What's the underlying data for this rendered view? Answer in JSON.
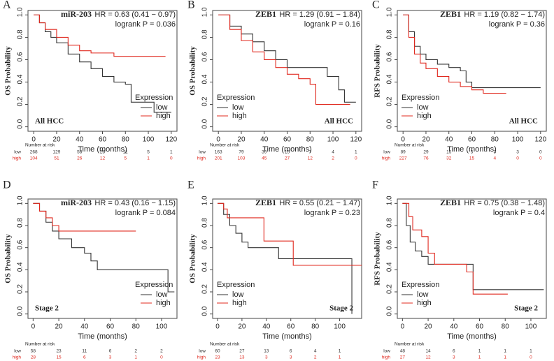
{
  "chart_data": [
    {
      "type": "step",
      "panel": "A",
      "gene": "miR-203",
      "hr": "HR = 0.63 (0.41 − 0.97)",
      "p": "logrank P = 0.036",
      "annotation": "All HCC",
      "y_label": "OS Probability",
      "x_label": "Time (months)",
      "legend_title": "Expression",
      "legend": "lower right",
      "xlim": [
        -5,
        125
      ],
      "xticks": [
        0,
        20,
        40,
        60,
        80,
        100,
        120
      ],
      "ylim": [
        -0.04,
        1.04
      ],
      "yticks": [
        {
          "value": 0,
          "label": "0.0"
        },
        {
          "value": 0.2,
          "label": "0.2"
        },
        {
          "value": 0.4,
          "label": "0.4"
        },
        {
          "value": 0.6,
          "label": "0.6"
        },
        {
          "value": 0.8,
          "label": "0.8"
        },
        {
          "value": 1,
          "label": "1.0"
        }
      ],
      "series": [
        {
          "name": "low",
          "color": "#333333",
          "x": [
            0,
            5,
            10,
            15,
            20,
            30,
            40,
            50,
            60,
            70,
            80,
            85,
            105,
            120
          ],
          "values": [
            1,
            0.93,
            0.85,
            0.8,
            0.75,
            0.65,
            0.58,
            0.52,
            0.45,
            0.4,
            0.38,
            0.22,
            0.13,
            0.13
          ]
        },
        {
          "name": "high",
          "color": "#e0281e",
          "x": [
            0,
            5,
            10,
            20,
            30,
            40,
            50,
            70,
            115
          ],
          "values": [
            1,
            0.93,
            0.87,
            0.8,
            0.73,
            0.68,
            0.66,
            0.63,
            0.63
          ]
        }
      ],
      "risk_table": {
        "title": "Number at risk",
        "rows": [
          {
            "name": "low",
            "values": [
              268,
              129,
              58,
              28,
              11,
              5,
              1
            ]
          },
          {
            "name": "high",
            "values": [
              104,
              51,
              26,
              12,
              5,
              1,
              0
            ]
          }
        ]
      }
    },
    {
      "type": "step",
      "panel": "B",
      "gene": "ZEB1",
      "hr": "HR = 1.29 (0.91 − 1.84)",
      "p": "logrank P = 0.16",
      "annotation": "All HCC",
      "y_label": "OS Probability",
      "x_label": "Time (months)",
      "legend_title": "Expression",
      "legend": "lower left",
      "xlim": [
        -5,
        125
      ],
      "xticks": [
        0,
        20,
        40,
        60,
        80,
        100,
        120
      ],
      "ylim": [
        -0.04,
        1.04
      ],
      "yticks": [
        {
          "value": 0,
          "label": "0.0"
        },
        {
          "value": 0.2,
          "label": "0.2"
        },
        {
          "value": 0.4,
          "label": "0.4"
        },
        {
          "value": 0.6,
          "label": "0.6"
        },
        {
          "value": 0.8,
          "label": "0.8"
        },
        {
          "value": 1,
          "label": "1.0"
        }
      ],
      "series": [
        {
          "name": "low",
          "color": "#333333",
          "x": [
            0,
            10,
            20,
            30,
            40,
            50,
            60,
            95,
            105,
            110,
            120
          ],
          "values": [
            1,
            0.9,
            0.83,
            0.76,
            0.68,
            0.6,
            0.53,
            0.45,
            0.33,
            0.22,
            0.22
          ]
        },
        {
          "name": "high",
          "color": "#e0281e",
          "x": [
            0,
            10,
            20,
            30,
            40,
            50,
            60,
            70,
            80,
            85,
            115
          ],
          "values": [
            1,
            0.87,
            0.77,
            0.67,
            0.6,
            0.53,
            0.47,
            0.43,
            0.38,
            0.2,
            0.2
          ]
        }
      ],
      "risk_table": {
        "title": "Number at risk",
        "rows": [
          {
            "name": "low",
            "values": [
              163,
              79,
              39,
              15,
              7,
              4,
              1
            ]
          },
          {
            "name": "high",
            "values": [
              201,
              103,
              45,
              27,
              12,
              2,
              0
            ]
          }
        ]
      }
    },
    {
      "type": "step",
      "panel": "C",
      "gene": "ZEB1",
      "hr": "HR = 1.19 (0.82 − 1.74)",
      "p": "logrank P = 0.36",
      "annotation": "All HCC",
      "y_label": "RFS Probability",
      "x_label": "Time (months)",
      "legend_title": "Expression",
      "legend": "lower left",
      "xlim": [
        -5,
        125
      ],
      "xticks": [
        0,
        20,
        40,
        60,
        80,
        100,
        120
      ],
      "ylim": [
        -0.04,
        1.04
      ],
      "yticks": [
        {
          "value": 0,
          "label": "0.0"
        },
        {
          "value": 0.2,
          "label": "0.2"
        },
        {
          "value": 0.4,
          "label": "0.4"
        },
        {
          "value": 0.6,
          "label": "0.6"
        },
        {
          "value": 0.8,
          "label": "0.8"
        },
        {
          "value": 1,
          "label": "1.0"
        }
      ],
      "series": [
        {
          "name": "low",
          "color": "#333333",
          "x": [
            0,
            5,
            10,
            15,
            20,
            30,
            40,
            50,
            55,
            60,
            120
          ],
          "values": [
            1,
            0.85,
            0.72,
            0.65,
            0.6,
            0.56,
            0.53,
            0.5,
            0.4,
            0.35,
            0.35
          ]
        },
        {
          "name": "high",
          "color": "#e0281e",
          "x": [
            0,
            5,
            10,
            15,
            20,
            30,
            40,
            50,
            60,
            70,
            90
          ],
          "values": [
            1,
            0.8,
            0.65,
            0.57,
            0.52,
            0.45,
            0.4,
            0.36,
            0.33,
            0.3,
            0.3
          ]
        }
      ],
      "risk_table": {
        "title": "Number at risk",
        "rows": [
          {
            "name": "low",
            "values": [
              89,
              29,
              15,
              5,
              3,
              3,
              0
            ]
          },
          {
            "name": "high",
            "values": [
              227,
              76,
              32,
              15,
              4,
              0,
              0
            ]
          }
        ]
      }
    },
    {
      "type": "step",
      "panel": "D",
      "gene": "miR-203",
      "hr": "HR = 0.43 (0.16 − 1.15)",
      "p": "logrank P = 0.084",
      "annotation": "Stage 2",
      "y_label": "OS Probability",
      "x_label": "Time (months)",
      "legend_title": "Expression",
      "legend": "lower right",
      "xlim": [
        -4,
        112
      ],
      "xticks": [
        0,
        20,
        40,
        60,
        80,
        100
      ],
      "ylim": [
        -0.04,
        1.04
      ],
      "yticks": [
        {
          "value": 0,
          "label": "0.0"
        },
        {
          "value": 0.2,
          "label": "0.2"
        },
        {
          "value": 0.4,
          "label": "0.4"
        },
        {
          "value": 0.6,
          "label": "0.6"
        },
        {
          "value": 0.8,
          "label": "0.8"
        },
        {
          "value": 1,
          "label": "1.0"
        }
      ],
      "series": [
        {
          "name": "low",
          "color": "#333333",
          "x": [
            0,
            5,
            10,
            15,
            20,
            30,
            40,
            45,
            50,
            105,
            110
          ],
          "values": [
            1,
            0.93,
            0.83,
            0.75,
            0.68,
            0.6,
            0.55,
            0.48,
            0.4,
            0.2,
            0.2
          ]
        },
        {
          "name": "high",
          "color": "#e0281e",
          "x": [
            0,
            5,
            10,
            15,
            20,
            80
          ],
          "values": [
            1,
            0.93,
            0.87,
            0.8,
            0.75,
            0.75
          ]
        }
      ],
      "risk_table": {
        "title": "Number at risk",
        "rows": [
          {
            "name": "low",
            "values": [
              58,
              23,
              11,
              6,
              2,
              2
            ]
          },
          {
            "name": "high",
            "values": [
              28,
              15,
              6,
              3,
              1,
              0
            ]
          }
        ]
      }
    },
    {
      "type": "step",
      "panel": "E",
      "gene": "ZEB1",
      "hr": "HR = 0.55 (0.21 − 1.47)",
      "p": "logrank P = 0.23",
      "annotation": "Stage 2",
      "y_label": "OS Probability",
      "x_label": "Time (months)",
      "legend_title": "Expression",
      "legend": "lower left",
      "xlim": [
        -4,
        118
      ],
      "xticks": [
        0,
        20,
        40,
        60,
        80,
        100
      ],
      "ylim": [
        -0.04,
        1.04
      ],
      "yticks": [
        {
          "value": 0,
          "label": "0.0"
        },
        {
          "value": 0.2,
          "label": "0.2"
        },
        {
          "value": 0.4,
          "label": "0.4"
        },
        {
          "value": 0.6,
          "label": "0.6"
        },
        {
          "value": 0.8,
          "label": "0.8"
        },
        {
          "value": 1,
          "label": "1.0"
        }
      ],
      "series": [
        {
          "name": "low",
          "color": "#333333",
          "x": [
            0,
            5,
            10,
            15,
            20,
            25,
            50,
            110
          ],
          "values": [
            1,
            0.9,
            0.8,
            0.73,
            0.65,
            0.6,
            0.5,
            0
          ]
        },
        {
          "name": "high",
          "color": "#e0281e",
          "x": [
            0,
            5,
            8,
            38,
            62,
            118
          ],
          "values": [
            1,
            0.95,
            0.87,
            0.66,
            0.44,
            0.44
          ]
        }
      ],
      "risk_table": {
        "title": "Number at risk",
        "rows": [
          {
            "name": "low",
            "values": [
              60,
              27,
              13,
              6,
              4,
              1
            ]
          },
          {
            "name": "high",
            "values": [
              23,
              13,
              3,
              3,
              2,
              1
            ]
          }
        ]
      }
    },
    {
      "type": "step",
      "panel": "F",
      "gene": "ZEB1",
      "hr": "HR = 0.75 (0.38 − 1.48)",
      "p": "logrank P = 0.4",
      "annotation": "Stage 2",
      "y_label": "RFS Probability",
      "x_label": "Time (months)",
      "legend_title": "Expression",
      "legend": "lower left",
      "xlim": [
        -4,
        112
      ],
      "xticks": [
        0,
        20,
        40,
        60,
        80,
        100
      ],
      "ylim": [
        -0.04,
        1.04
      ],
      "yticks": [
        {
          "value": 0,
          "label": "0.0"
        },
        {
          "value": 0.2,
          "label": "0.2"
        },
        {
          "value": 0.4,
          "label": "0.4"
        },
        {
          "value": 0.6,
          "label": "0.6"
        },
        {
          "value": 0.8,
          "label": "0.8"
        },
        {
          "value": 1,
          "label": "1.0"
        }
      ],
      "series": [
        {
          "name": "low",
          "color": "#333333",
          "x": [
            0,
            3,
            6,
            10,
            15,
            20,
            55,
            110
          ],
          "values": [
            1,
            0.8,
            0.65,
            0.57,
            0.52,
            0.45,
            0.22,
            0.22
          ]
        },
        {
          "name": "high",
          "color": "#e0281e",
          "x": [
            0,
            5,
            8,
            15,
            20,
            25,
            50,
            55,
            82
          ],
          "values": [
            1,
            0.88,
            0.76,
            0.7,
            0.55,
            0.45,
            0.38,
            0.18,
            0.18
          ]
        }
      ],
      "risk_table": {
        "title": "Number at risk",
        "rows": [
          {
            "name": "low",
            "values": [
              48,
              14,
              6,
              1,
              1,
              1
            ]
          },
          {
            "name": "high",
            "values": [
              27,
              12,
              3,
              1,
              1,
              0
            ]
          }
        ]
      }
    }
  ]
}
